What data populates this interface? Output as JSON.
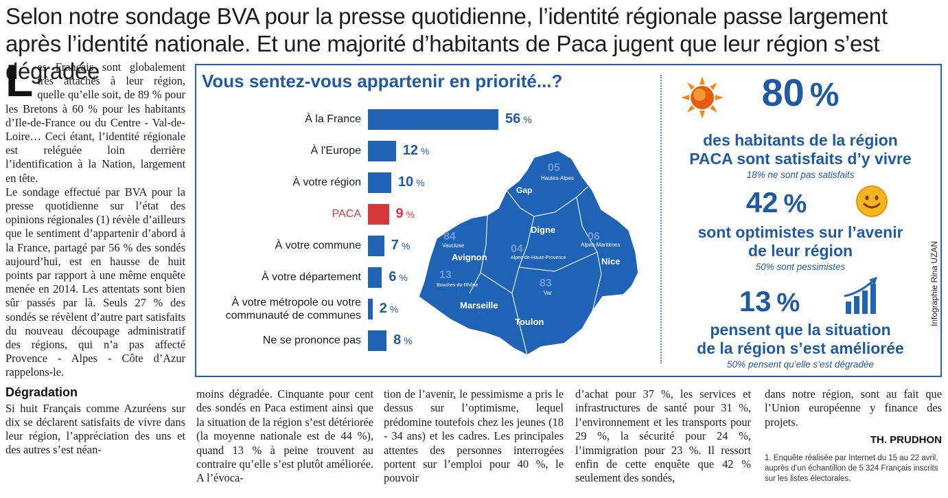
{
  "headline": "Selon notre sondage BVA pour la presse quotidienne, l’identité régionale passe largement après l’identité nationale. Et une majorité d’habitants de Paca jugent que leur région s’est dégradée",
  "article": {
    "dropcap": "L",
    "para1": "es Français sont globalement très attachés à leur région, quelle qu’elle soit, de 89 % pour les Bretons à 60 % pour les habitants d’Ile-de-France ou du Centre - Val-de-Loire… Ceci étant, l’identité régionale est reléguée loin derrière l’identification à la Nation, largement en tête.",
    "para2": "Le sondage effectué par BVA pour la presse quotidienne sur l’état des opinions régionales (1) révèle d’ailleurs que le sentiment d’appartenir d’abord à la France, partagé par 56 % des sondés aujourd’hui, est en hausse de huit points par rapport à une même enquête menée en 2014. Les attentats sont bien sûr passés par là. Seuls 27 % des sondés se révèlent d’autre part satisfaits du nouveau découpage administratif des régions, qui n’a pas affecté Provence - Alpes - Côte d’Azur rappelons-le.",
    "subhead": "Dégradation",
    "para3": "Si huit Français comme Azuréens sur dix se déclarent satisfaits de vivre dans leur région, l’appréciation des uns et des autres s’est néan-",
    "col2": "moins dégradée. Cinquante pour cent des sondés en Paca estiment ainsi que la situation de la région s’est détériorée (la moyenne nationale est de 44 %), quand 13 % à peine trouvent au contraire qu’elle s’est plutôt améliorée. A l’évoca-",
    "col3": "tion de l’avenir, le pessimisme a pris le dessus sur l’optimisme, lequel prédomine toutefois chez les jeunes (18 - 34 ans) et les cadres. Les principales attentes des personnes interrogées portent sur l’emploi pour 40 %, le pouvoir",
    "col4": "d’achat pour 37 %, les services et infrastructures de santé pour 31 %, l’environnement et les transports pour 29 %, la sécurité pour 24 %, l’immigration pour 23 %. Il ressort enfin de cette enquête que 42 % seulement des sondés,",
    "col5": "dans notre région, sont au fait que l’Union européenne y finance des projets.",
    "signature": "TH. PRUDHON",
    "footnote": "1. Enquête réalisée par Internet du 15 au 22 avril, auprès d’un échantillon de 5 324 Français inscrits sur les listes électorales."
  },
  "infographic": {
    "title": "Vous sentez-vous appartenir en priorité...?",
    "credit": "Infographie Rina UZAN",
    "pct_sign": "%",
    "stats": [
      {
        "value": "80",
        "text1": "des habitants de la région",
        "text2": "PACA sont satisfaits d’y vivre",
        "sub": "18% ne sont pas satisfaits",
        "icon": "sun-icon"
      },
      {
        "value": "42",
        "text1": "sont optimistes sur l’avenir",
        "text2": "de leur région",
        "sub": "50% sont pessimistes",
        "icon": "smiley-icon"
      },
      {
        "value": "13",
        "text1": "pensent que la situation",
        "text2": "de la région s’est améliorée",
        "sub": "50% pensent qu’elle s’est dégradée",
        "icon": "rising-chart-icon"
      }
    ],
    "map": {
      "labels": [
        "05",
        "Hautes-Alpes",
        "Gap",
        "Digne",
        "84",
        "Vaucluse",
        "Avignon",
        "04",
        "Alpes-de-Haute-Provence",
        "06",
        "Alpes-Maritimes",
        "Nice",
        "13",
        "Bouches-du-Rhône",
        "83",
        "Var",
        "Marseille",
        "Toulon"
      ]
    },
    "colors": {
      "accent": "#1f63b6",
      "highlight": "#d8373b"
    }
  },
  "chart_data": {
    "type": "bar",
    "orientation": "horizontal",
    "title": "Vous sentez-vous appartenir en priorité...?",
    "categories": [
      "À la France",
      "À l'Europe",
      "À votre région",
      "PACA",
      "À votre commune",
      "À votre département",
      "À votre métropole ou votre communauté de communes",
      "Ne se prononce pas"
    ],
    "values": [
      56,
      12,
      10,
      9,
      7,
      6,
      2,
      8
    ],
    "unit": "%",
    "highlight_index": 3,
    "xlim": [
      0,
      56
    ]
  }
}
